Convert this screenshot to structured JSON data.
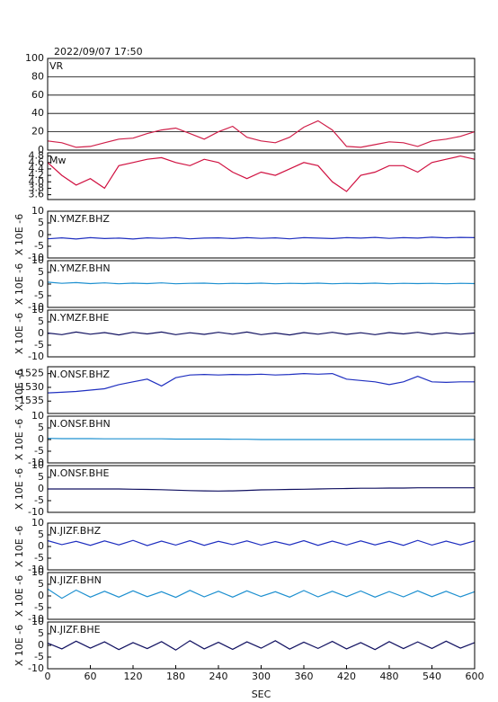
{
  "title": "2022/09/07 17:50",
  "chart_data": [
    {
      "type": "line",
      "label": "VR",
      "color": "#d0204a",
      "ylim": [
        0,
        100
      ],
      "yticks": [
        0,
        20,
        40,
        60,
        80,
        100
      ],
      "grid": true,
      "xlim": [
        0,
        600
      ],
      "x": [
        0,
        20,
        40,
        60,
        80,
        100,
        120,
        140,
        160,
        180,
        200,
        220,
        240,
        260,
        280,
        300,
        320,
        340,
        360,
        380,
        400,
        420,
        440,
        460,
        480,
        500,
        520,
        540,
        560,
        580,
        600
      ],
      "values": [
        10,
        8,
        3,
        4,
        8,
        12,
        13,
        18,
        22,
        24,
        18,
        12,
        20,
        26,
        14,
        10,
        8,
        14,
        25,
        32,
        22,
        4,
        3,
        6,
        9,
        8,
        4,
        10,
        12,
        15,
        20
      ]
    },
    {
      "type": "line",
      "label": "Mw",
      "color": "#d01040",
      "ylim": [
        3.45,
        4.9
      ],
      "yticks": [
        3.6,
        3.8,
        {
          "value": 4.0,
          "label": "4.0"
        },
        4.2,
        4.4,
        4.6,
        4.8
      ],
      "grid": false,
      "xlim": [
        0,
        600
      ],
      "x": [
        0,
        20,
        40,
        60,
        80,
        100,
        120,
        140,
        160,
        180,
        200,
        220,
        240,
        260,
        280,
        300,
        320,
        340,
        360,
        380,
        400,
        420,
        440,
        460,
        480,
        500,
        520,
        540,
        560,
        580,
        600
      ],
      "values": [
        4.6,
        4.2,
        3.9,
        4.1,
        3.8,
        4.5,
        4.6,
        4.7,
        4.75,
        4.6,
        4.5,
        4.7,
        4.6,
        4.3,
        4.1,
        4.3,
        4.2,
        4.4,
        4.6,
        4.5,
        4.0,
        3.7,
        4.2,
        4.3,
        4.5,
        4.5,
        4.3,
        4.6,
        4.7,
        4.8,
        4.7
      ]
    },
    {
      "type": "line",
      "label": "N.YMZF.BHZ",
      "ylabel": "X 10E -6",
      "color": "#2030c0",
      "ylim": [
        -10,
        10
      ],
      "yticks": [
        -10,
        -5,
        0,
        5,
        10
      ],
      "xlim": [
        0,
        600
      ],
      "x": [
        0,
        20,
        40,
        60,
        80,
        100,
        120,
        140,
        160,
        180,
        200,
        220,
        240,
        260,
        280,
        300,
        320,
        340,
        360,
        380,
        400,
        420,
        440,
        460,
        480,
        500,
        520,
        540,
        560,
        580,
        600
      ],
      "values": [
        -1.8,
        -1.4,
        -1.9,
        -1.3,
        -1.7,
        -1.5,
        -1.9,
        -1.4,
        -1.6,
        -1.3,
        -1.8,
        -1.5,
        -1.4,
        -1.7,
        -1.3,
        -1.6,
        -1.4,
        -1.8,
        -1.3,
        -1.5,
        -1.7,
        -1.3,
        -1.5,
        -1.2,
        -1.6,
        -1.3,
        -1.5,
        -1.1,
        -1.4,
        -1.2,
        -1.3
      ]
    },
    {
      "type": "line",
      "label": "N.YMZF.BHN",
      "ylabel": "X 10E -6",
      "color": "#1e90d0",
      "ylim": [
        -10,
        10
      ],
      "yticks": [
        -10,
        -5,
        0,
        5,
        10
      ],
      "xlim": [
        0,
        600
      ],
      "x": [
        0,
        20,
        40,
        60,
        80,
        100,
        120,
        140,
        160,
        180,
        200,
        220,
        240,
        260,
        280,
        300,
        320,
        340,
        360,
        380,
        400,
        420,
        440,
        460,
        480,
        500,
        520,
        540,
        560,
        580,
        600
      ],
      "values": [
        0.8,
        0.3,
        0.6,
        0.2,
        0.5,
        0.1,
        0.4,
        0.2,
        0.5,
        0.1,
        0.3,
        0.4,
        0.1,
        0.3,
        0.2,
        0.4,
        0.1,
        0.3,
        0.2,
        0.4,
        0.1,
        0.3,
        0.2,
        0.4,
        0.1,
        0.3,
        0.2,
        0.3,
        0.1,
        0.3,
        0.2
      ]
    },
    {
      "type": "line",
      "label": "N.YMZF.BHE",
      "ylabel": "X 10E -6",
      "color": "#101060",
      "ylim": [
        -10,
        10
      ],
      "yticks": [
        -10,
        -5,
        0,
        5,
        10
      ],
      "xlim": [
        0,
        600
      ],
      "x": [
        0,
        20,
        40,
        60,
        80,
        100,
        120,
        140,
        160,
        180,
        200,
        220,
        240,
        260,
        280,
        300,
        320,
        340,
        360,
        380,
        400,
        420,
        440,
        460,
        480,
        500,
        520,
        540,
        560,
        580,
        600
      ],
      "values": [
        0.2,
        -0.5,
        0.6,
        -0.3,
        0.4,
        -0.6,
        0.5,
        -0.2,
        0.6,
        -0.5,
        0.3,
        -0.4,
        0.5,
        -0.3,
        0.6,
        -0.5,
        0.2,
        -0.6,
        0.4,
        -0.3,
        0.5,
        -0.4,
        0.3,
        -0.5,
        0.4,
        -0.2,
        0.5,
        -0.4,
        0.3,
        -0.3,
        0.2
      ]
    },
    {
      "type": "line",
      "label": "N.ONSF.BHZ",
      "ylabel": "X 10E -6",
      "color": "#2030c0",
      "ylim": [
        -1539.5,
        -1522.5
      ],
      "yticks": [
        -1535,
        -1530,
        -1525
      ],
      "xlim": [
        0,
        600
      ],
      "x": [
        0,
        20,
        40,
        60,
        80,
        100,
        120,
        140,
        160,
        180,
        200,
        220,
        240,
        260,
        280,
        300,
        320,
        340,
        360,
        380,
        400,
        420,
        440,
        460,
        480,
        500,
        520,
        540,
        560,
        580,
        600
      ],
      "values": [
        -1532,
        -1531.8,
        -1531.5,
        -1531,
        -1530.5,
        -1529,
        -1528,
        -1527,
        -1529.5,
        -1526.5,
        -1525.5,
        -1525.3,
        -1525.5,
        -1525.3,
        -1525.4,
        -1525.2,
        -1525.5,
        -1525.3,
        -1525,
        -1525.2,
        -1525,
        -1527,
        -1527.5,
        -1528,
        -1529,
        -1528,
        -1526,
        -1528,
        -1528.2,
        -1528,
        -1528
      ]
    },
    {
      "type": "line",
      "label": "N.ONSF.BHN",
      "ylabel": "X 10E -6",
      "color": "#1e90d0",
      "ylim": [
        -10,
        10
      ],
      "yticks": [
        -10,
        -5,
        0,
        5,
        10
      ],
      "xlim": [
        0,
        600
      ],
      "x": [
        0,
        20,
        40,
        60,
        80,
        100,
        120,
        140,
        160,
        180,
        200,
        220,
        240,
        260,
        280,
        300,
        320,
        340,
        360,
        380,
        400,
        420,
        440,
        460,
        480,
        500,
        520,
        540,
        560,
        580,
        600
      ],
      "values": [
        0.5,
        0.4,
        0.4,
        0.4,
        0.3,
        0.3,
        0.3,
        0.3,
        0.3,
        0.2,
        0.2,
        0.2,
        0.2,
        0.1,
        0.1,
        0,
        0,
        0,
        0,
        0,
        0,
        0,
        0,
        0,
        0,
        0,
        0,
        0,
        0,
        0,
        0
      ]
    },
    {
      "type": "line",
      "label": "N.ONSF.BHE",
      "ylabel": "X 10E -6",
      "color": "#101060",
      "ylim": [
        -10,
        10
      ],
      "yticks": [
        -10,
        -5,
        0,
        5,
        10
      ],
      "xlim": [
        0,
        600
      ],
      "x": [
        0,
        20,
        40,
        60,
        80,
        100,
        120,
        140,
        160,
        180,
        200,
        220,
        240,
        260,
        280,
        300,
        320,
        340,
        360,
        380,
        400,
        420,
        440,
        460,
        480,
        500,
        520,
        540,
        560,
        580,
        600
      ],
      "values": [
        0,
        0,
        0,
        0,
        0,
        0,
        -0.1,
        -0.2,
        -0.3,
        -0.5,
        -0.7,
        -0.8,
        -0.9,
        -0.8,
        -0.6,
        -0.4,
        -0.3,
        -0.2,
        -0.1,
        0,
        0.1,
        0.2,
        0.3,
        0.3,
        0.4,
        0.4,
        0.5,
        0.5,
        0.5,
        0.5,
        0.5
      ]
    },
    {
      "type": "line",
      "label": "N.JIZF.BHZ",
      "ylabel": "X 10E -6",
      "color": "#2030c0",
      "ylim": [
        -10,
        10
      ],
      "yticks": [
        -10,
        -5,
        0,
        5,
        10
      ],
      "xlim": [
        0,
        600
      ],
      "x": [
        0,
        20,
        40,
        60,
        80,
        100,
        120,
        140,
        160,
        180,
        200,
        220,
        240,
        260,
        280,
        300,
        320,
        340,
        360,
        380,
        400,
        420,
        440,
        460,
        480,
        500,
        520,
        540,
        560,
        580,
        600
      ],
      "values": [
        2.5,
        0.8,
        2.2,
        0.5,
        2.4,
        0.7,
        2.6,
        0.4,
        2.3,
        0.6,
        2.5,
        0.5,
        2.2,
        0.8,
        2.4,
        0.6,
        2.1,
        0.7,
        2.5,
        0.5,
        2.3,
        0.6,
        2.4,
        0.7,
        2.2,
        0.5,
        2.6,
        0.6,
        2.3,
        0.7,
        2.4
      ]
    },
    {
      "type": "line",
      "label": "N.JIZF.BHN",
      "ylabel": "X 10E -6",
      "color": "#1e90d0",
      "ylim": [
        -10,
        10
      ],
      "yticks": [
        -10,
        -5,
        0,
        5,
        10
      ],
      "xlim": [
        0,
        600
      ],
      "x": [
        0,
        20,
        40,
        60,
        80,
        100,
        120,
        140,
        160,
        180,
        200,
        220,
        240,
        260,
        280,
        300,
        320,
        340,
        360,
        380,
        400,
        420,
        440,
        460,
        480,
        500,
        520,
        540,
        560,
        580,
        600
      ],
      "values": [
        3,
        -1,
        2.5,
        -0.5,
        2,
        -0.5,
        2.2,
        -0.3,
        1.8,
        -0.6,
        2.4,
        -0.4,
        2,
        -0.5,
        2.2,
        -0.2,
        1.8,
        -0.5,
        2.3,
        -0.4,
        2,
        -0.3,
        2.1,
        -0.5,
        1.9,
        -0.4,
        2.2,
        -0.3,
        2,
        -0.4,
        1.8
      ]
    },
    {
      "type": "line",
      "label": "N.JIZF.BHE",
      "ylabel": "X 10E -6",
      "color": "#101060",
      "ylim": [
        -10,
        10
      ],
      "yticks": [
        -10,
        -5,
        0,
        5,
        10
      ],
      "xlim": [
        0,
        600
      ],
      "x": [
        0,
        20,
        40,
        60,
        80,
        100,
        120,
        140,
        160,
        180,
        200,
        220,
        240,
        260,
        280,
        300,
        320,
        340,
        360,
        380,
        400,
        420,
        440,
        460,
        480,
        500,
        520,
        540,
        560,
        580,
        600
      ],
      "values": [
        1,
        -1.5,
        1.8,
        -1.2,
        1.5,
        -1.8,
        1.2,
        -1.4,
        1.6,
        -2,
        2,
        -1.5,
        1.3,
        -1.7,
        1.5,
        -1.2,
        2,
        -1.6,
        1.4,
        -1.3,
        1.7,
        -1.5,
        1.2,
        -1.8,
        1.6,
        -1.4,
        1.5,
        -1.3,
        1.8,
        -1.2,
        1.2
      ],
      "xticks": [
        0,
        60,
        120,
        180,
        240,
        300,
        360,
        420,
        480,
        540,
        600
      ],
      "xlabel": "SEC"
    }
  ]
}
